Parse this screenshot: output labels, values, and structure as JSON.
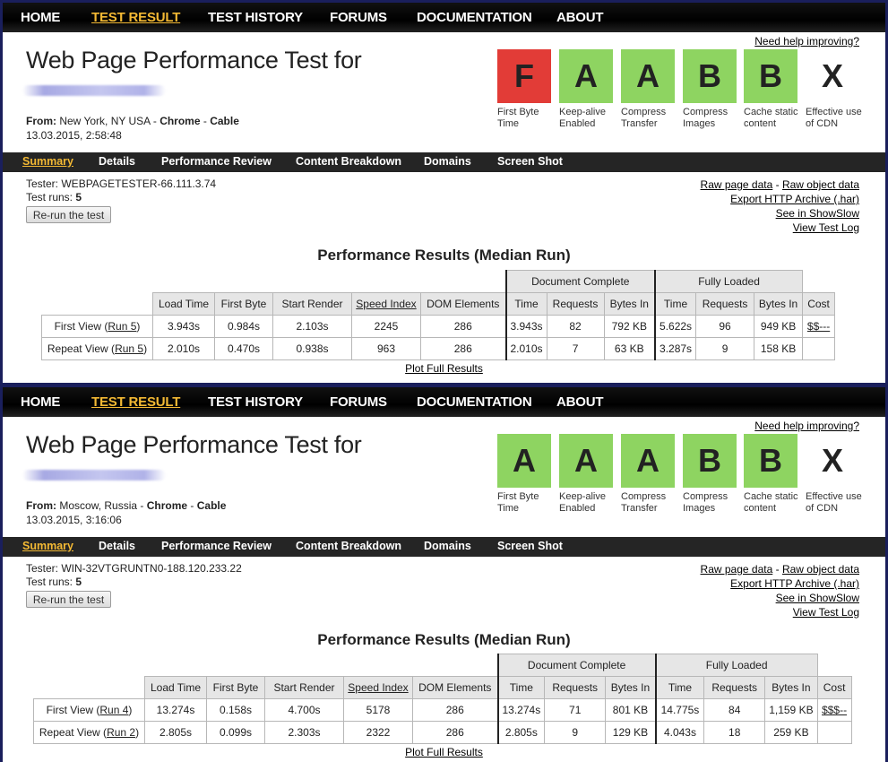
{
  "nav": [
    "HOME",
    "TEST RESULT",
    "TEST HISTORY",
    "FORUMS",
    "DOCUMENTATION",
    "ABOUT"
  ],
  "nav_active": "TEST RESULT",
  "help_link": "Need help improving?",
  "page_title": "Web Page Performance Test for",
  "subnav": [
    "Summary",
    "Details",
    "Performance Review",
    "Content Breakdown",
    "Domains",
    "Screen Shot"
  ],
  "rerun_label": "Re-run the test",
  "links": {
    "raw_page": "Raw page data",
    "dash": "-",
    "raw_object": "Raw object data",
    "har": "Export HTTP Archive (.har)",
    "showslow": "See in ShowSlow",
    "log": "View Test Log"
  },
  "results_title": "Performance Results (Median Run)",
  "plot_link": "Plot Full Results",
  "headers": {
    "group_doc": "Document Complete",
    "group_full": "Fully Loaded",
    "cols": [
      "Load Time",
      "First Byte",
      "Start Render",
      "Speed Index",
      "DOM Elements",
      "Time",
      "Requests",
      "Bytes In",
      "Time",
      "Requests",
      "Bytes In",
      "Cost"
    ]
  },
  "colors": {
    "grade_red": "#e23c37",
    "grade_green": "#8ed461",
    "nav_active": "#f3b934",
    "bar": "#252525"
  },
  "panels": [
    {
      "from_label": "From:",
      "location": "New York, NY USA",
      "browser": "Chrome",
      "connection": "Cable",
      "sep": " - ",
      "date": "13.03.2015, 2:58:48",
      "tester": "WEBPAGETESTER-66.111.3.74",
      "test_runs_label": "Test runs:",
      "test_runs": "5",
      "grades": [
        {
          "letter": "F",
          "label": "First Byte Time",
          "state": "red"
        },
        {
          "letter": "A",
          "label": "Keep-alive Enabled",
          "state": "green"
        },
        {
          "letter": "A",
          "label": "Compress Transfer",
          "state": "green"
        },
        {
          "letter": "B",
          "label": "Compress Images",
          "state": "green"
        },
        {
          "letter": "B",
          "label": "Cache static content",
          "state": "green"
        },
        {
          "letter": "X",
          "label": "Effective use of CDN",
          "state": "none"
        }
      ],
      "rows": [
        {
          "label": "First View",
          "run": "Run 5",
          "cells": [
            "3.943s",
            "0.984s",
            "2.103s",
            "2245",
            "286",
            "3.943s",
            "82",
            "792 KB",
            "5.622s",
            "96",
            "949 KB",
            "$$---"
          ]
        },
        {
          "label": "Repeat View",
          "run": "Run 5",
          "cells": [
            "2.010s",
            "0.470s",
            "0.938s",
            "963",
            "286",
            "2.010s",
            "7",
            "63 KB",
            "3.287s",
            "9",
            "158 KB",
            ""
          ]
        }
      ]
    },
    {
      "from_label": "From:",
      "location": "Moscow, Russia",
      "browser": "Chrome",
      "connection": "Cable",
      "sep": " - ",
      "date": "13.03.2015, 3:16:06",
      "tester": "WIN-32VTGRUNTN0-188.120.233.22",
      "test_runs_label": "Test runs:",
      "test_runs": "5",
      "grades": [
        {
          "letter": "A",
          "label": "First Byte Time",
          "state": "green"
        },
        {
          "letter": "A",
          "label": "Keep-alive Enabled",
          "state": "green"
        },
        {
          "letter": "A",
          "label": "Compress Transfer",
          "state": "green"
        },
        {
          "letter": "B",
          "label": "Compress Images",
          "state": "green"
        },
        {
          "letter": "B",
          "label": "Cache static content",
          "state": "green"
        },
        {
          "letter": "X",
          "label": "Effective use of CDN",
          "state": "none"
        }
      ],
      "rows": [
        {
          "label": "First View",
          "run": "Run 4",
          "cells": [
            "13.274s",
            "0.158s",
            "4.700s",
            "5178",
            "286",
            "13.274s",
            "71",
            "801 KB",
            "14.775s",
            "84",
            "1,159 KB",
            "$$$--"
          ]
        },
        {
          "label": "Repeat View",
          "run": "Run 2",
          "cells": [
            "2.805s",
            "0.099s",
            "2.303s",
            "2322",
            "286",
            "2.805s",
            "9",
            "129 KB",
            "4.043s",
            "18",
            "259 KB",
            ""
          ]
        }
      ]
    }
  ]
}
